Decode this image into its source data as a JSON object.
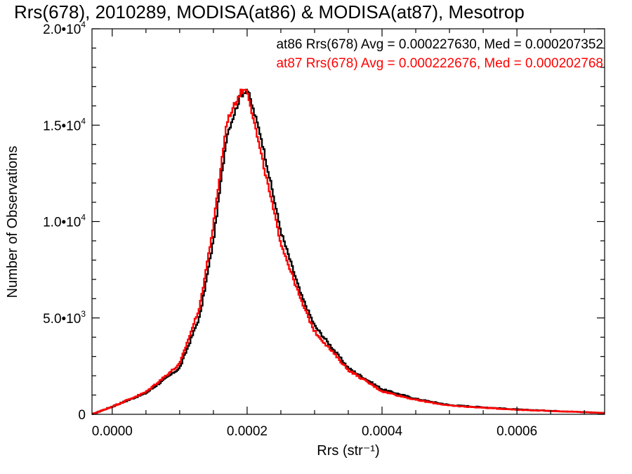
{
  "chart_data": {
    "type": "line",
    "title": "Rrs(678), 2010289, MODISA(at86) & MODISA(at87), Mesotrop",
    "xlabel": "Rrs (str⁻¹)",
    "ylabel": "Number of Observations",
    "xlim": [
      -3e-05,
      0.00073
    ],
    "ylim": [
      0,
      20000
    ],
    "x_ticks": [
      {
        "value": 0.0,
        "label": "0.0000"
      },
      {
        "value": 0.0002,
        "label": "0.0002"
      },
      {
        "value": 0.0004,
        "label": "0.0004"
      },
      {
        "value": 0.0006,
        "label": "0.0006"
      }
    ],
    "y_ticks": [
      {
        "value": 0,
        "mantissa": "0",
        "exponent": ""
      },
      {
        "value": 5000,
        "mantissa": "5.0•10",
        "exponent": "3"
      },
      {
        "value": 10000,
        "mantissa": "1.0•10",
        "exponent": "4"
      },
      {
        "value": 15000,
        "mantissa": "1.5•10",
        "exponent": "4"
      },
      {
        "value": 20000,
        "mantissa": "2.0•10",
        "exponent": "4"
      }
    ],
    "legend_placement": "top-right",
    "x": [
      -3e-05,
      0.0,
      5e-05,
      0.0001,
      0.00013,
      0.00015,
      0.00017,
      0.00019,
      0.0002,
      0.00022,
      0.00025,
      0.00028,
      0.0003,
      0.00035,
      0.0004,
      0.00045,
      0.0005,
      0.0006,
      0.00073
    ],
    "series": [
      {
        "name": "at86",
        "color": "#000000",
        "legend_text": "at86 Rrs(678) Avg = 0.000227630, Med = 0.000207352",
        "values": [
          0,
          400,
          1100,
          2400,
          5100,
          9000,
          14500,
          16500,
          16900,
          14500,
          9500,
          6200,
          4600,
          2400,
          1300,
          800,
          480,
          250,
          70
        ]
      },
      {
        "name": "at87",
        "color": "#ff0000",
        "legend_text": "at87 Rrs(678) Avg = 0.000222676, Med = 0.000202768",
        "values": [
          0,
          400,
          1150,
          2600,
          5600,
          9800,
          15200,
          16700,
          16900,
          13600,
          8900,
          5900,
          4300,
          2300,
          1200,
          750,
          450,
          240,
          70
        ]
      }
    ]
  }
}
